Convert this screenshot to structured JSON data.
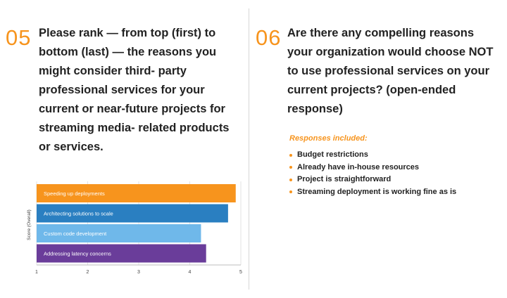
{
  "q05": {
    "number": "05",
    "text": "Please rank — from top (first) to bottom (last) — the reasons you might consider third- party professional services for your current or near-future projects for streaming media- related products or services."
  },
  "q06": {
    "number": "06",
    "text": "Are there any compelling reasons your organization would choose NOT to use professional services on your current projects? (open-ended response)",
    "responses_title": "Responses included:",
    "responses": [
      "Budget restrictions",
      "Already have in-house resources",
      "Project is straightforward",
      "Streaming deployment is working fine as is"
    ]
  },
  "chart_data": {
    "type": "bar",
    "orientation": "horizontal",
    "categories": [
      "Speeding up deployments",
      "Architecting solutions to scale",
      "Custom code development",
      "Addressing latency concerns"
    ],
    "values": [
      4.9,
      4.75,
      4.22,
      4.32
    ],
    "colors": [
      "#f7941d",
      "#2a7fc1",
      "#6fb8ea",
      "#6a3d9a"
    ],
    "ylabel": "Score (Overall)",
    "xlim": [
      1,
      5
    ],
    "xticks": [
      1,
      2,
      3,
      4,
      5
    ],
    "grid": true
  }
}
